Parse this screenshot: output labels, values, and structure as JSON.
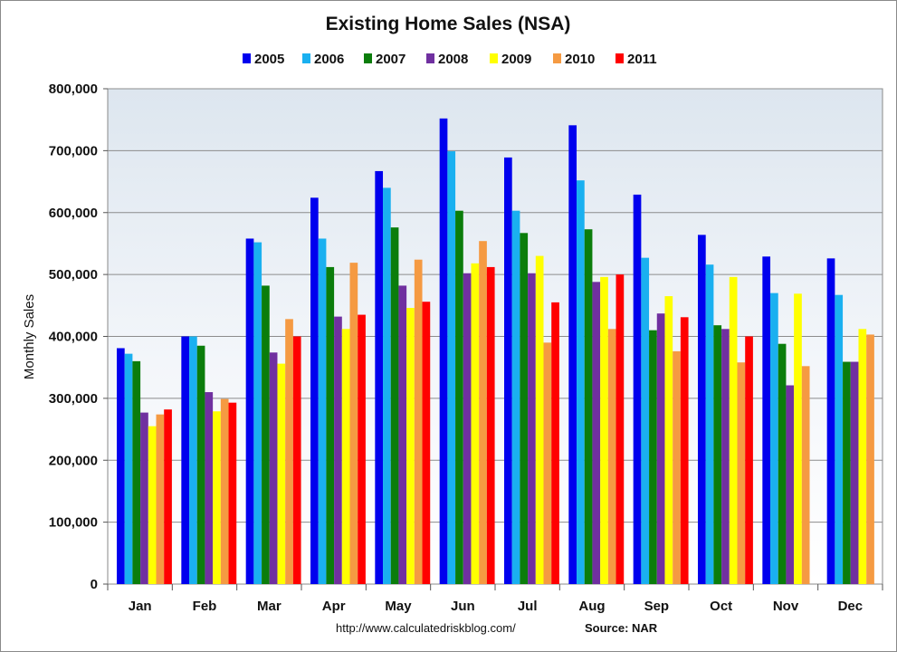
{
  "chart_data": {
    "type": "bar",
    "title": "Existing Home Sales (NSA)",
    "ylabel": "Monthly Sales",
    "xlabel": "",
    "ylim": [
      0,
      800000
    ],
    "yticks": [
      0,
      100000,
      200000,
      300000,
      400000,
      500000,
      600000,
      700000,
      800000
    ],
    "ytick_labels": [
      "0",
      "100,000",
      "200,000",
      "300,000",
      "400,000",
      "500,000",
      "600,000",
      "700,000",
      "800,000"
    ],
    "grid": true,
    "legend_position": "top",
    "categories": [
      "Jan",
      "Feb",
      "Mar",
      "Apr",
      "May",
      "Jun",
      "Jul",
      "Aug",
      "Sep",
      "Oct",
      "Nov",
      "Dec"
    ],
    "series": [
      {
        "name": "2005",
        "color": "#0000ee",
        "values": [
          381000,
          400000,
          558000,
          624000,
          667000,
          752000,
          689000,
          741000,
          629000,
          564000,
          529000,
          526000
        ]
      },
      {
        "name": "2006",
        "color": "#1ab0f0",
        "values": [
          372000,
          400000,
          552000,
          558000,
          640000,
          699000,
          603000,
          652000,
          527000,
          516000,
          470000,
          467000
        ]
      },
      {
        "name": "2007",
        "color": "#0b7d0b",
        "values": [
          360000,
          385000,
          482000,
          512000,
          576000,
          603000,
          567000,
          573000,
          410000,
          418000,
          388000,
          359000
        ]
      },
      {
        "name": "2008",
        "color": "#7030a0",
        "values": [
          277000,
          310000,
          374000,
          432000,
          482000,
          502000,
          502000,
          488000,
          437000,
          412000,
          321000,
          359000
        ]
      },
      {
        "name": "2009",
        "color": "#ffff00",
        "values": [
          255000,
          279000,
          356000,
          412000,
          446000,
          518000,
          530000,
          496000,
          465000,
          496000,
          469000,
          412000
        ]
      },
      {
        "name": "2010",
        "color": "#f59a42",
        "values": [
          274000,
          299000,
          428000,
          519000,
          524000,
          554000,
          390000,
          412000,
          376000,
          358000,
          352000,
          403000
        ]
      },
      {
        "name": "2011",
        "color": "#ff0000",
        "values": [
          282000,
          293000,
          400000,
          435000,
          456000,
          512000,
          455000,
          500000,
          431000,
          400000,
          null,
          null
        ]
      }
    ],
    "footer_url": "http://www.calculatedriskblog.com/",
    "footer_source": "Source: NAR"
  }
}
